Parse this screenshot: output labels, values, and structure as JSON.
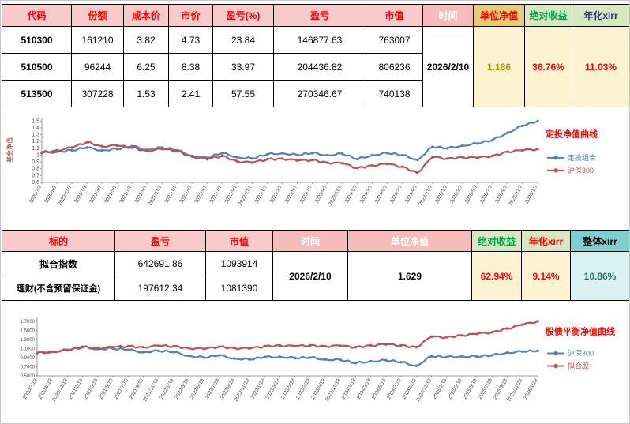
{
  "colors": {
    "header_pink_bg": "#f8caca",
    "header_red_text": "#ff0000",
    "header_khaki_bg": "#e5cd74",
    "header_green_bg": "#d7e8c1",
    "header_teal_bg": "#7fcfcf",
    "value_yellow_bg": "#fdf3d1",
    "value_teal_bg": "#d9f2f1",
    "gold_text": "#bf8f00",
    "series_blue": "#4f81bd",
    "series_red": "#c0504d"
  },
  "table1": {
    "headers": [
      "代码",
      "份额",
      "成本价",
      "市价",
      "盈亏(%)",
      "盈亏",
      "市值",
      "时间",
      "单位净值",
      "绝对收益",
      "年化xirr"
    ],
    "rows": [
      [
        "510300",
        "161210",
        "3.82",
        "4.73",
        "23.84",
        "146877.63",
        "763007"
      ],
      [
        "510500",
        "96244",
        "6.25",
        "8.38",
        "33.97",
        "204436.82",
        "806236"
      ],
      [
        "513500",
        "307228",
        "1.53",
        "2.41",
        "57.55",
        "270346.67",
        "740138"
      ]
    ],
    "summary": {
      "time": "2026/2/10",
      "unit_nav": "1.186",
      "abs_return": "36.76%",
      "xirr": "11.03%"
    }
  },
  "table2": {
    "headers": [
      "标的",
      "盈亏",
      "市值",
      "时间",
      "单位净值",
      "绝对收益",
      "年化xirr",
      "整体xirr"
    ],
    "rows": [
      [
        "拟合指数",
        "642691.86",
        "1093914"
      ],
      [
        "理财(不含预留保证金)",
        "197612.34",
        "1081390"
      ]
    ],
    "summary": {
      "time": "2026/2/10",
      "unit_nav": "1.629",
      "abs_return": "62.94%",
      "xirr": "9.14%",
      "overall_xirr": "10.86%"
    }
  },
  "chart_data": [
    {
      "type": "line",
      "title": "定投净值曲线",
      "title_color": "#ff0000",
      "ylabel": "基金净值",
      "ylabel_color": "#963634",
      "ylim": [
        0.6,
        1.55
      ],
      "ytick_values": [
        0.6,
        0.7,
        0.8,
        0.9,
        1,
        1.1,
        1.2,
        1.3,
        1.4,
        1.5
      ],
      "ytick_labels": [
        "0.6",
        "0.7",
        "0.8",
        "0.9",
        "1",
        "1.1",
        "1.2",
        "1.3",
        "1.4",
        "1.5"
      ],
      "legend_position": "right",
      "grid": false,
      "x_labels": [
        "2020/7/7",
        "2020/9/7",
        "2020/11/7",
        "2021/1/7",
        "2021/3/7",
        "2021/5/7",
        "2021/7/7",
        "2021/9/7",
        "2021/11/7",
        "2022/1/7",
        "2022/3/7",
        "2022/5/7",
        "2022/7/7",
        "2022/9/7",
        "2022/11/7",
        "2023/1/7",
        "2023/3/7",
        "2023/5/7",
        "2023/7/7",
        "2023/9/7",
        "2023/11/7",
        "2024/1/7",
        "2024/3/7",
        "2024/5/7",
        "2024/7/7",
        "2024/9/7",
        "2024/11/7",
        "2025/1/7",
        "2025/3/7",
        "2025/5/7",
        "2025/7/7",
        "2025/9/7",
        "2025/11/7",
        "2026/1/7"
      ],
      "series": [
        {
          "name": "定投组合",
          "color": "#4f81bd",
          "values": [
            1.03,
            1.05,
            1.07,
            1.11,
            1.07,
            1.09,
            1.13,
            1.08,
            1.11,
            1.07,
            0.99,
            0.96,
            1.03,
            0.97,
            0.95,
            1.01,
            1.03,
            1.0,
            1.03,
            1.0,
            1.02,
            0.94,
            1.0,
            1.03,
            1.0,
            0.93,
            1.12,
            1.1,
            1.14,
            1.17,
            1.22,
            1.33,
            1.43,
            1.5
          ]
        },
        {
          "name": "沪深300",
          "color": "#c0504d",
          "values": [
            1.04,
            1.07,
            1.11,
            1.19,
            1.13,
            1.14,
            1.11,
            1.06,
            1.09,
            1.06,
            0.98,
            0.94,
            0.99,
            0.91,
            0.89,
            0.94,
            0.95,
            0.92,
            0.93,
            0.89,
            0.88,
            0.81,
            0.85,
            0.87,
            0.83,
            0.74,
            0.97,
            0.95,
            0.97,
            0.96,
            0.99,
            1.05,
            1.07,
            1.09
          ]
        }
      ]
    },
    {
      "type": "line",
      "title": "股债平衡净值曲线",
      "title_color": "#ff0000",
      "ylabel": "",
      "ylim": [
        0.5,
        1.8
      ],
      "ytick_values": [
        0.5,
        0.7,
        0.9,
        1.1,
        1.3,
        1.5,
        1.7
      ],
      "ytick_labels": [
        "0.5000",
        "0.7000",
        "0.9000",
        "1.1000",
        "1.3000",
        "1.5000",
        "1.7000"
      ],
      "legend_position": "right",
      "grid": false,
      "x_labels": [
        "2020/7/13",
        "2020/9/13",
        "2020/11/13",
        "2021/1/13",
        "2021/3/13",
        "2021/5/13",
        "2021/7/13",
        "2021/9/13",
        "2021/11/13",
        "2022/1/13",
        "2022/3/13",
        "2022/5/13",
        "2022/7/13",
        "2022/9/13",
        "2022/11/13",
        "2023/1/13",
        "2023/3/13",
        "2023/5/13",
        "2023/7/13",
        "2023/9/13",
        "2023/11/13",
        "2024/1/13",
        "2024/3/13",
        "2024/5/13",
        "2024/7/13",
        "2024/9/13",
        "2024/11/13",
        "2025/1/13",
        "2025/3/13",
        "2025/5/13",
        "2025/7/13",
        "2025/9/13",
        "2025/11/13",
        "2026/1/13"
      ],
      "series": [
        {
          "name": "沪深300",
          "color": "#4f81bd",
          "values": [
            1.0,
            1.03,
            1.07,
            1.14,
            1.09,
            1.1,
            1.07,
            1.02,
            1.05,
            1.02,
            0.94,
            0.9,
            0.95,
            0.88,
            0.86,
            0.91,
            0.92,
            0.89,
            0.9,
            0.86,
            0.85,
            0.78,
            0.82,
            0.84,
            0.8,
            0.72,
            0.93,
            0.91,
            0.93,
            0.92,
            0.95,
            1.01,
            1.03,
            1.05
          ]
        },
        {
          "name": "拟合股",
          "color": "#c0504d",
          "values": [
            1.0,
            1.03,
            1.06,
            1.13,
            1.11,
            1.13,
            1.15,
            1.13,
            1.16,
            1.15,
            1.11,
            1.09,
            1.14,
            1.11,
            1.1,
            1.15,
            1.17,
            1.15,
            1.17,
            1.15,
            1.16,
            1.13,
            1.17,
            1.19,
            1.17,
            1.13,
            1.36,
            1.35,
            1.39,
            1.42,
            1.46,
            1.54,
            1.62,
            1.7
          ]
        }
      ]
    }
  ]
}
